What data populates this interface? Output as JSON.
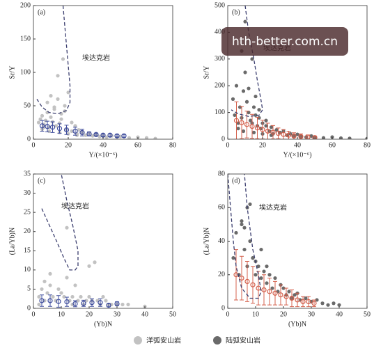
{
  "chart_data": [
    {
      "type": "scatter",
      "label": "(a)",
      "xlabel": "Y/(×10⁻⁶)",
      "ylabel": "Sr/Y",
      "annotation": "埃达克岩",
      "xlim": [
        0,
        80
      ],
      "xticks": [
        0,
        20,
        40,
        60,
        80
      ],
      "ylim": [
        0,
        200
      ],
      "yticks": [
        0,
        50,
        100,
        150,
        200
      ],
      "series": [
        {
          "name": "洋弧安山岩",
          "color": "#c2c2c2",
          "x": [
            3,
            4,
            5,
            6,
            7,
            8,
            9,
            10,
            11,
            12,
            13,
            14,
            15,
            16,
            17,
            18,
            19,
            20,
            22,
            24,
            25,
            26,
            28,
            30,
            32,
            34,
            36,
            38,
            40,
            42,
            45,
            48,
            50,
            55,
            60,
            65,
            70,
            8,
            10,
            14,
            12,
            16,
            18,
            22,
            6,
            9,
            15,
            20,
            25,
            5
          ],
          "values": [
            25,
            30,
            35,
            22,
            28,
            40,
            18,
            33,
            26,
            45,
            20,
            60,
            24,
            30,
            120,
            50,
            15,
            70,
            12,
            20,
            8,
            14,
            10,
            6,
            9,
            5,
            7,
            4,
            6,
            3,
            5,
            3,
            4,
            2,
            3,
            2,
            1,
            55,
            65,
            95,
            48,
            38,
            42,
            25,
            18,
            12,
            10,
            8,
            6,
            15
          ]
        },
        {
          "color": "#3e4c9c",
          "x": [
            5,
            8,
            11,
            15,
            19,
            24,
            28,
            32,
            36,
            40,
            44,
            48,
            52
          ],
          "values": [
            20,
            19,
            18,
            16,
            14,
            12,
            10,
            8,
            7,
            6,
            6,
            5,
            5
          ],
          "errors": [
            8,
            8,
            8,
            7,
            7,
            6,
            5,
            3,
            2,
            2,
            2,
            2,
            2
          ]
        }
      ],
      "boundary": {
        "color": "#3a3d6e",
        "x": [
          17,
          18,
          19,
          20,
          21,
          21,
          19,
          14,
          9,
          5,
          2
        ],
        "y": [
          200,
          170,
          140,
          110,
          80,
          55,
          43,
          38,
          40,
          48,
          60
        ]
      }
    },
    {
      "type": "scatter",
      "label": "(b)",
      "xlabel": "Y/(×10⁻⁶)",
      "ylabel": "Sr/Y",
      "annotation": "埃达克岩",
      "xlim": [
        0,
        80
      ],
      "xticks": [
        0,
        20,
        40,
        60,
        80
      ],
      "ylim": [
        0,
        500
      ],
      "yticks": [
        0,
        100,
        200,
        300,
        400,
        500
      ],
      "series": [
        {
          "name": "陆弧安山岩",
          "color": "#6a6a6a",
          "x": [
            3,
            4,
            5,
            6,
            7,
            8,
            9,
            10,
            11,
            12,
            13,
            14,
            15,
            16,
            17,
            18,
            19,
            20,
            22,
            24,
            25,
            26,
            28,
            30,
            32,
            34,
            36,
            38,
            40,
            42,
            45,
            48,
            50,
            55,
            60,
            65,
            70,
            80,
            8,
            10,
            14,
            12,
            16,
            18,
            22,
            6,
            9,
            15,
            20,
            25
          ],
          "values": [
            150,
            90,
            200,
            60,
            120,
            80,
            180,
            250,
            140,
            100,
            70,
            60,
            120,
            90,
            50,
            80,
            40,
            60,
            50,
            30,
            45,
            20,
            35,
            25,
            30,
            15,
            20,
            12,
            18,
            10,
            8,
            12,
            6,
            5,
            8,
            4,
            3,
            2,
            330,
            440,
            300,
            190,
            160,
            110,
            70,
            40,
            30,
            25,
            20,
            15
          ]
        },
        {
          "color": "#d4604c",
          "x": [
            5,
            8,
            11,
            14,
            17,
            20,
            23,
            26,
            29,
            32,
            35,
            38,
            42,
            46,
            50
          ],
          "values": [
            70,
            62,
            55,
            48,
            42,
            36,
            30,
            26,
            22,
            18,
            15,
            12,
            10,
            8,
            6
          ],
          "errors": [
            70,
            60,
            50,
            45,
            40,
            35,
            30,
            25,
            20,
            18,
            15,
            12,
            10,
            8,
            6
          ]
        }
      ],
      "boundary": {
        "color": "#3a3d6e",
        "x": [
          10,
          12,
          15,
          17,
          19,
          20,
          18,
          12,
          6,
          2
        ],
        "y": [
          500,
          400,
          300,
          220,
          150,
          110,
          90,
          85,
          95,
          110
        ]
      }
    },
    {
      "type": "scatter",
      "label": "(c)",
      "xlabel": "(Yb)N",
      "ylabel": "(La/Yb)N",
      "annotation": "埃达克岩",
      "xlim": [
        0,
        50
      ],
      "xticks": [
        0,
        10,
        20,
        30,
        40,
        50
      ],
      "ylim": [
        0,
        35
      ],
      "yticks": [
        0,
        5,
        10,
        15,
        20,
        25,
        30,
        35
      ],
      "series": [
        {
          "color": "#c2c2c2",
          "x": [
            2,
            3,
            4,
            5,
            6,
            7,
            8,
            9,
            10,
            11,
            12,
            13,
            14,
            15,
            16,
            17,
            18,
            19,
            20,
            21,
            22,
            23,
            24,
            25,
            26,
            27,
            28,
            30,
            32,
            34,
            40,
            2,
            4,
            6,
            8,
            10,
            12,
            14,
            20,
            22
          ],
          "values": [
            3,
            5,
            2,
            4,
            6,
            3,
            2,
            5,
            4,
            3,
            21,
            2,
            3,
            6,
            2,
            3,
            1,
            2,
            3,
            2,
            12,
            2,
            1,
            3,
            2,
            1,
            1,
            1,
            1,
            1,
            0.5,
            1,
            7,
            9,
            2,
            4,
            8,
            1,
            11,
            12
          ]
        },
        {
          "color": "#3e4c9c",
          "x": [
            3,
            6,
            9,
            12,
            15,
            18,
            21,
            24,
            27,
            30
          ],
          "values": [
            2,
            2,
            1.8,
            1.7,
            1.2,
            1.3,
            1.5,
            1.5,
            0.8,
            1.2
          ],
          "errors": [
            1.5,
            1.5,
            1.5,
            1.2,
            0.8,
            0.8,
            1,
            1,
            0.4,
            0.5
          ]
        }
      ],
      "boundary": {
        "color": "#3a3d6e",
        "x": [
          3,
          8,
          11,
          13,
          15,
          16,
          16,
          14,
          12,
          10
        ],
        "y": [
          26,
          18,
          13,
          10,
          10,
          11,
          15,
          22,
          28,
          35
        ]
      }
    },
    {
      "type": "scatter",
      "label": "(d)",
      "xlabel": "(Yb)N",
      "ylabel": "(La/Yb)N",
      "annotation": "埃达克岩",
      "xlim": [
        0,
        50
      ],
      "xticks": [
        0,
        10,
        20,
        30,
        40,
        50
      ],
      "ylim": [
        0,
        80
      ],
      "yticks": [
        0,
        20,
        40,
        60,
        80
      ],
      "series": [
        {
          "color": "#6a6a6a",
          "x": [
            2,
            3,
            4,
            5,
            6,
            7,
            8,
            9,
            10,
            11,
            12,
            13,
            14,
            15,
            16,
            17,
            18,
            19,
            20,
            21,
            22,
            23,
            24,
            25,
            26,
            28,
            30,
            32,
            34,
            36,
            38,
            40,
            5,
            6,
            7,
            8,
            9,
            10,
            12,
            14
          ],
          "values": [
            30,
            45,
            20,
            50,
            35,
            25,
            40,
            30,
            20,
            25,
            18,
            22,
            15,
            20,
            12,
            18,
            10,
            14,
            12,
            8,
            10,
            6,
            8,
            9,
            5,
            6,
            4,
            5,
            3,
            2,
            3,
            2,
            52,
            48,
            60,
            62,
            30,
            28,
            35,
            25
          ]
        },
        {
          "color": "#d4604c",
          "x": [
            3,
            5,
            7,
            9,
            11,
            13,
            15,
            17,
            19,
            21,
            23,
            25,
            27,
            29,
            31
          ],
          "values": [
            20,
            18,
            16,
            14,
            12,
            11,
            10,
            9,
            8,
            7,
            6,
            5,
            4,
            4,
            3
          ],
          "errors": [
            15,
            13,
            12,
            11,
            10,
            9,
            8,
            7,
            6,
            5,
            5,
            4,
            3,
            3,
            2
          ]
        }
      ],
      "boundary": {
        "color": "#3a3d6e",
        "x": [
          0,
          1,
          2,
          3,
          5,
          8,
          11,
          12,
          11,
          9,
          7,
          6
        ],
        "y": [
          80,
          60,
          40,
          25,
          12,
          6,
          6,
          10,
          20,
          35,
          60,
          80
        ]
      }
    }
  ],
  "watermark": "hth-better.com.cn"
}
